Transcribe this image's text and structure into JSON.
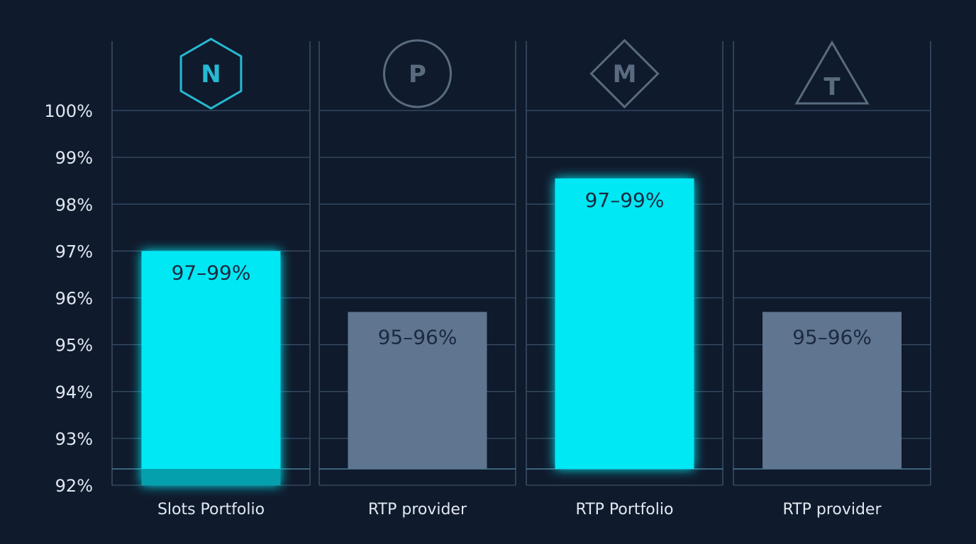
{
  "chart_data": {
    "type": "bar",
    "categories": [
      "Slots Portfolio",
      "RTP provider",
      "RTP Portfolio",
      "RTP provider"
    ],
    "values": [
      97.0,
      95.7,
      98.55,
      95.7
    ],
    "data_labels": [
      "97–99%",
      "95–96%",
      "97–99%",
      "95–96%"
    ],
    "highlighted": [
      true,
      false,
      true,
      false
    ],
    "icons": [
      {
        "letter": "N",
        "shape": "hexagon",
        "name": "hexagon-n-icon"
      },
      {
        "letter": "P",
        "shape": "circle",
        "name": "circle-p-icon"
      },
      {
        "letter": "M",
        "shape": "diamond",
        "name": "diamond-m-icon"
      },
      {
        "letter": "T",
        "shape": "triangle",
        "name": "triangle-t-icon"
      }
    ],
    "ylim": [
      92,
      100
    ],
    "yticks": [
      92,
      93,
      94,
      95,
      96,
      97,
      98,
      99,
      100
    ],
    "ytick_labels": [
      "92%",
      "93%",
      "94%",
      "95%",
      "96%",
      "97%",
      "98%",
      "99%",
      "100%"
    ],
    "title": "",
    "xlabel": "",
    "ylabel": "",
    "grid": true,
    "colors": {
      "background": "#0f1a2c",
      "highlight": "#00e8f4",
      "muted": "#5f7590",
      "grid": "#3a4f68",
      "icon_highlight": "#27b9d3",
      "icon_muted": "#5a6b80",
      "text": "#e2e8f2",
      "bar_text": "#1b2a40"
    }
  }
}
